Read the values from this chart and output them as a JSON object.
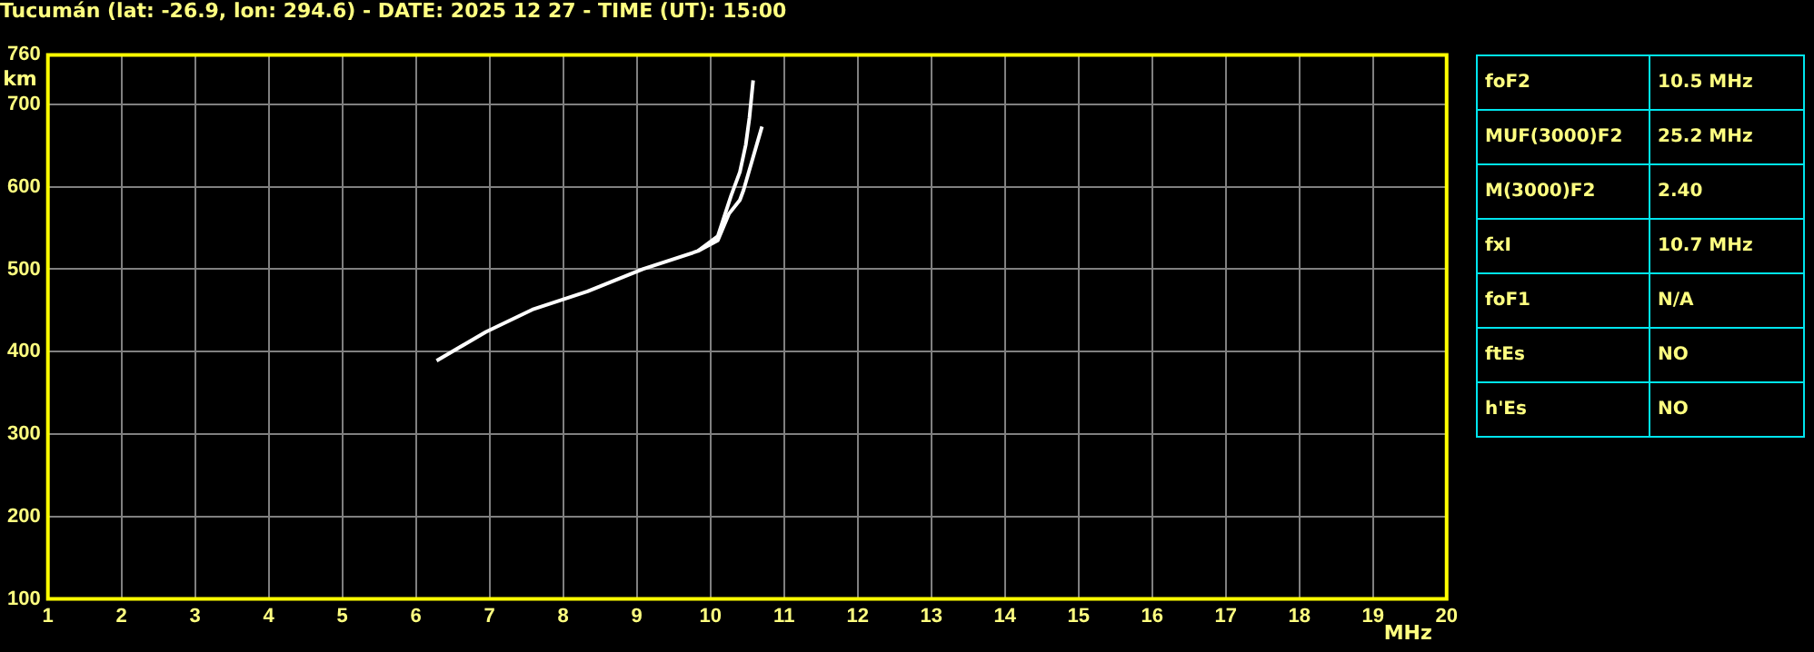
{
  "chart_data": {
    "type": "line",
    "title": "Tucumán (lat: -26.9, lon: 294.6) - DATE: 2025 12 27 - TIME (UT): 15:00",
    "xlabel": "MHz",
    "ylabel": "km",
    "series": [
      {
        "color": "#ffffff",
        "x": [
          6.28,
          6.95,
          7.58,
          8.33,
          9.08,
          9.83,
          10.1,
          10.28,
          10.4,
          10.48,
          10.53,
          10.58
        ],
        "values": [
          389,
          424,
          451,
          473,
          500,
          522,
          540,
          589,
          618,
          651,
          684,
          729
        ]
      },
      {
        "color": "#ffffff",
        "x": [
          9.83,
          10.1,
          10.25,
          10.4,
          10.45,
          10.7
        ],
        "values": [
          522,
          535,
          567,
          584,
          596,
          673
        ]
      }
    ],
    "xlim": [
      1,
      20
    ],
    "xticks": [
      1,
      2,
      3,
      4,
      5,
      6,
      7,
      8,
      9,
      10,
      11,
      12,
      13,
      14,
      15,
      16,
      17,
      18,
      19,
      20
    ],
    "ylim": [
      100,
      760
    ],
    "yticks": [
      100,
      200,
      300,
      400,
      500,
      600,
      700,
      760
    ],
    "grid": true,
    "legend": false,
    "marker": "none",
    "line_style": "solid",
    "annotations": [
      "foF2",
      "10.5 MHz",
      "MUF(3000)F2",
      "25.2 MHz",
      "M(3000)F2",
      "2.40",
      "fxI",
      "10.7 MHz",
      "foF1",
      "N/A",
      "ftEs",
      "NO",
      "h'Es",
      "NO"
    ]
  }
}
